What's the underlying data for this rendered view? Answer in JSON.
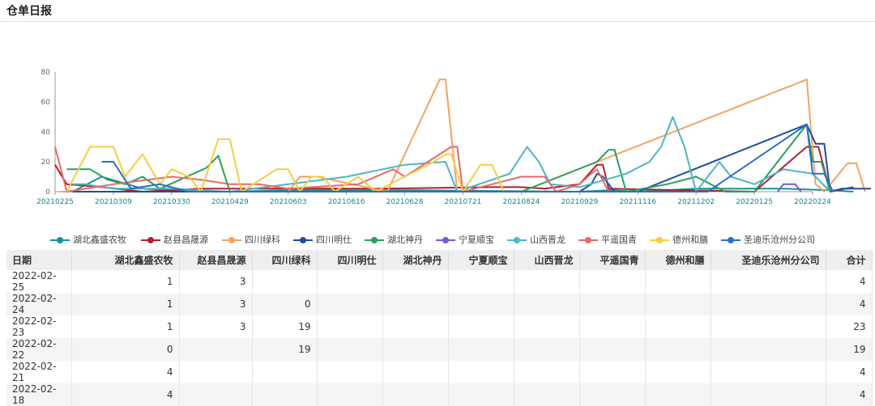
{
  "page": {
    "title": "仓单日报"
  },
  "chart_data": {
    "type": "line",
    "ylim": [
      0,
      80
    ],
    "yticks": [
      0,
      20,
      40,
      60,
      80
    ],
    "xticks": [
      "20210225",
      "20210309",
      "20210330",
      "20210429",
      "20210603",
      "20210616",
      "20210628",
      "20210721",
      "20210824",
      "20210929",
      "20211116",
      "20211202",
      "20220125",
      "20220224"
    ],
    "series": [
      {
        "name": "湖北鑫盛农牧",
        "color": "#13929b",
        "points": [
          [
            0.3,
            0
          ],
          [
            0.8,
            10
          ],
          [
            1.5,
            2
          ],
          [
            2.5,
            0
          ],
          [
            3,
            0
          ],
          [
            4,
            1
          ],
          [
            6,
            1
          ],
          [
            9,
            0
          ],
          [
            9.5,
            1
          ],
          [
            10,
            0
          ],
          [
            11,
            2
          ],
          [
            12.5,
            2
          ],
          [
            13.3,
            1
          ],
          [
            13.7,
            0
          ]
        ]
      },
      {
        "name": "赵县昌晟源",
        "color": "#b0212b",
        "points": [
          [
            0,
            18
          ],
          [
            0.2,
            5
          ],
          [
            0.8,
            3
          ],
          [
            1.5,
            0
          ],
          [
            2.5,
            2
          ],
          [
            3.5,
            2
          ],
          [
            5.5,
            2
          ],
          [
            7.5,
            3
          ],
          [
            8,
            3
          ],
          [
            8.4,
            2
          ],
          [
            9,
            5
          ],
          [
            9.3,
            18
          ],
          [
            9.4,
            18
          ],
          [
            9.5,
            2
          ],
          [
            12,
            0
          ],
          [
            12.9,
            30
          ],
          [
            13.1,
            30
          ],
          [
            13.3,
            0
          ],
          [
            13.7,
            3
          ]
        ]
      },
      {
        "name": "四川绿科",
        "color": "#f3a360",
        "points": [
          [
            0.1,
            0
          ],
          [
            2,
            0
          ],
          [
            4,
            0
          ],
          [
            4.2,
            10
          ],
          [
            4.5,
            10
          ],
          [
            5.7,
            0
          ],
          [
            6.6,
            75
          ],
          [
            6.7,
            75
          ],
          [
            6.9,
            0
          ],
          [
            8,
            0
          ],
          [
            12.9,
            75
          ],
          [
            13.05,
            5
          ],
          [
            13.2,
            0
          ],
          [
            13.6,
            19
          ],
          [
            13.75,
            19
          ],
          [
            13.9,
            0
          ]
        ]
      },
      {
        "name": "四川明仕",
        "color": "#1f4e9c",
        "points": [
          [
            0.3,
            0
          ],
          [
            6,
            0
          ],
          [
            8,
            0
          ],
          [
            9,
            0
          ],
          [
            9.2,
            5
          ],
          [
            9.3,
            12
          ],
          [
            9.4,
            10
          ],
          [
            9.6,
            0
          ],
          [
            10,
            0
          ],
          [
            12.9,
            45
          ],
          [
            13.05,
            32
          ],
          [
            13.2,
            32
          ],
          [
            13.3,
            0
          ],
          [
            13.5,
            2
          ],
          [
            14,
            2
          ]
        ]
      },
      {
        "name": "湖北神丹",
        "color": "#27a05a",
        "points": [
          [
            0.2,
            15
          ],
          [
            0.6,
            15
          ],
          [
            0.9,
            8
          ],
          [
            1.2,
            5
          ],
          [
            1.5,
            10
          ],
          [
            1.8,
            2
          ],
          [
            2.6,
            16
          ],
          [
            2.8,
            24
          ],
          [
            3,
            0
          ],
          [
            5,
            0
          ],
          [
            7,
            0
          ],
          [
            8,
            0
          ],
          [
            9.3,
            20
          ],
          [
            9.5,
            28
          ],
          [
            9.6,
            28
          ],
          [
            9.8,
            0
          ],
          [
            10.5,
            5
          ],
          [
            11,
            10
          ],
          [
            11.5,
            0
          ],
          [
            12,
            0
          ],
          [
            12.9,
            45
          ],
          [
            13,
            20
          ],
          [
            13.15,
            20
          ],
          [
            13.3,
            0
          ]
        ]
      },
      {
        "name": "宁夏顺宝",
        "color": "#7a57d1",
        "points": [
          [
            12.4,
            0
          ],
          [
            12.5,
            5
          ],
          [
            12.7,
            5
          ],
          [
            12.8,
            0
          ]
        ]
      },
      {
        "name": "山西晋龙",
        "color": "#4db6c4",
        "points": [
          [
            0.3,
            5
          ],
          [
            0.5,
            5
          ],
          [
            1,
            2
          ],
          [
            2,
            2
          ],
          [
            2.5,
            1
          ],
          [
            3,
            0
          ],
          [
            4,
            5
          ],
          [
            5,
            10
          ],
          [
            6,
            18
          ],
          [
            6.7,
            20
          ],
          [
            6.9,
            0
          ],
          [
            7.8,
            12
          ],
          [
            8.1,
            30
          ],
          [
            8.3,
            20
          ],
          [
            8.5,
            5
          ],
          [
            9,
            3
          ],
          [
            9.8,
            12
          ],
          [
            10.2,
            20
          ],
          [
            10.4,
            30
          ],
          [
            10.6,
            50
          ],
          [
            10.8,
            30
          ],
          [
            11,
            0
          ],
          [
            11.4,
            20
          ],
          [
            11.6,
            10
          ],
          [
            12,
            5
          ],
          [
            12.5,
            15
          ],
          [
            13,
            12
          ],
          [
            13.3,
            0
          ]
        ]
      },
      {
        "name": "平遥国青",
        "color": "#e76a67",
        "points": [
          [
            0,
            30
          ],
          [
            0.2,
            0
          ],
          [
            1,
            5
          ],
          [
            2,
            10
          ],
          [
            2.5,
            8
          ],
          [
            3,
            5
          ],
          [
            3.5,
            5
          ],
          [
            4,
            2
          ],
          [
            5.2,
            5
          ],
          [
            5.8,
            15
          ],
          [
            6,
            10
          ],
          [
            6.8,
            30
          ],
          [
            6.9,
            30
          ],
          [
            7,
            0
          ],
          [
            7.5,
            5
          ],
          [
            8,
            10
          ],
          [
            8.4,
            10
          ],
          [
            8.6,
            0
          ],
          [
            9,
            5
          ],
          [
            9.2,
            12
          ],
          [
            9.3,
            15
          ],
          [
            9.5,
            0
          ]
        ]
      },
      {
        "name": "德州和膳",
        "color": "#f4ce45",
        "points": [
          [
            0.2,
            0
          ],
          [
            0.6,
            30
          ],
          [
            1,
            30
          ],
          [
            1.2,
            10
          ],
          [
            1.5,
            25
          ],
          [
            1.8,
            5
          ],
          [
            2,
            15
          ],
          [
            2.3,
            10
          ],
          [
            2.5,
            0
          ],
          [
            2.8,
            35
          ],
          [
            3,
            35
          ],
          [
            3.2,
            0
          ],
          [
            3.8,
            15
          ],
          [
            4,
            15
          ],
          [
            4.2,
            0
          ],
          [
            4.4,
            10
          ],
          [
            4.6,
            10
          ],
          [
            4.8,
            0
          ],
          [
            5.2,
            10
          ],
          [
            5.5,
            0
          ],
          [
            6,
            10
          ],
          [
            6.5,
            20
          ],
          [
            6.7,
            25
          ],
          [
            6.8,
            25
          ],
          [
            7,
            0
          ],
          [
            7.3,
            18
          ],
          [
            7.5,
            18
          ],
          [
            7.7,
            0
          ],
          [
            8,
            0
          ]
        ]
      },
      {
        "name": "圣迪乐沧州分公司",
        "color": "#2a6fc6",
        "points": [
          [
            0.8,
            20
          ],
          [
            1,
            20
          ],
          [
            1.3,
            2
          ],
          [
            1.8,
            5
          ],
          [
            2.3,
            0
          ],
          [
            3,
            0
          ],
          [
            6,
            0
          ],
          [
            9.5,
            0
          ],
          [
            10,
            0
          ],
          [
            11.2,
            0
          ],
          [
            12.9,
            45
          ],
          [
            13,
            12
          ],
          [
            13.2,
            12
          ],
          [
            13.35,
            0
          ]
        ]
      }
    ]
  },
  "table": {
    "headers": [
      "日期",
      "湖北鑫盛农牧",
      "赵县昌晟源",
      "四川绿科",
      "四川明仕",
      "湖北神丹",
      "宁夏顺宝",
      "山西晋龙",
      "平遥国青",
      "德州和膳",
      "圣迪乐沧州分公司",
      "合计"
    ],
    "rows": [
      [
        "2022-02-25",
        "1",
        "3",
        "",
        "",
        "",
        "",
        "",
        "",
        "",
        "",
        "4"
      ],
      [
        "2022-02-24",
        "1",
        "3",
        "0",
        "",
        "",
        "",
        "",
        "",
        "",
        "",
        "4"
      ],
      [
        "2022-02-23",
        "1",
        "3",
        "19",
        "",
        "",
        "",
        "",
        "",
        "",
        "",
        "23"
      ],
      [
        "2022-02-22",
        "0",
        "",
        "19",
        "",
        "",
        "",
        "",
        "",
        "",
        "",
        "19"
      ],
      [
        "2022-02-21",
        "4",
        "",
        "",
        "",
        "",
        "",
        "",
        "",
        "",
        "",
        "4"
      ],
      [
        "2022-02-18",
        "4",
        "",
        "",
        "",
        "",
        "",
        "",
        "",
        "",
        "",
        "4"
      ]
    ]
  }
}
